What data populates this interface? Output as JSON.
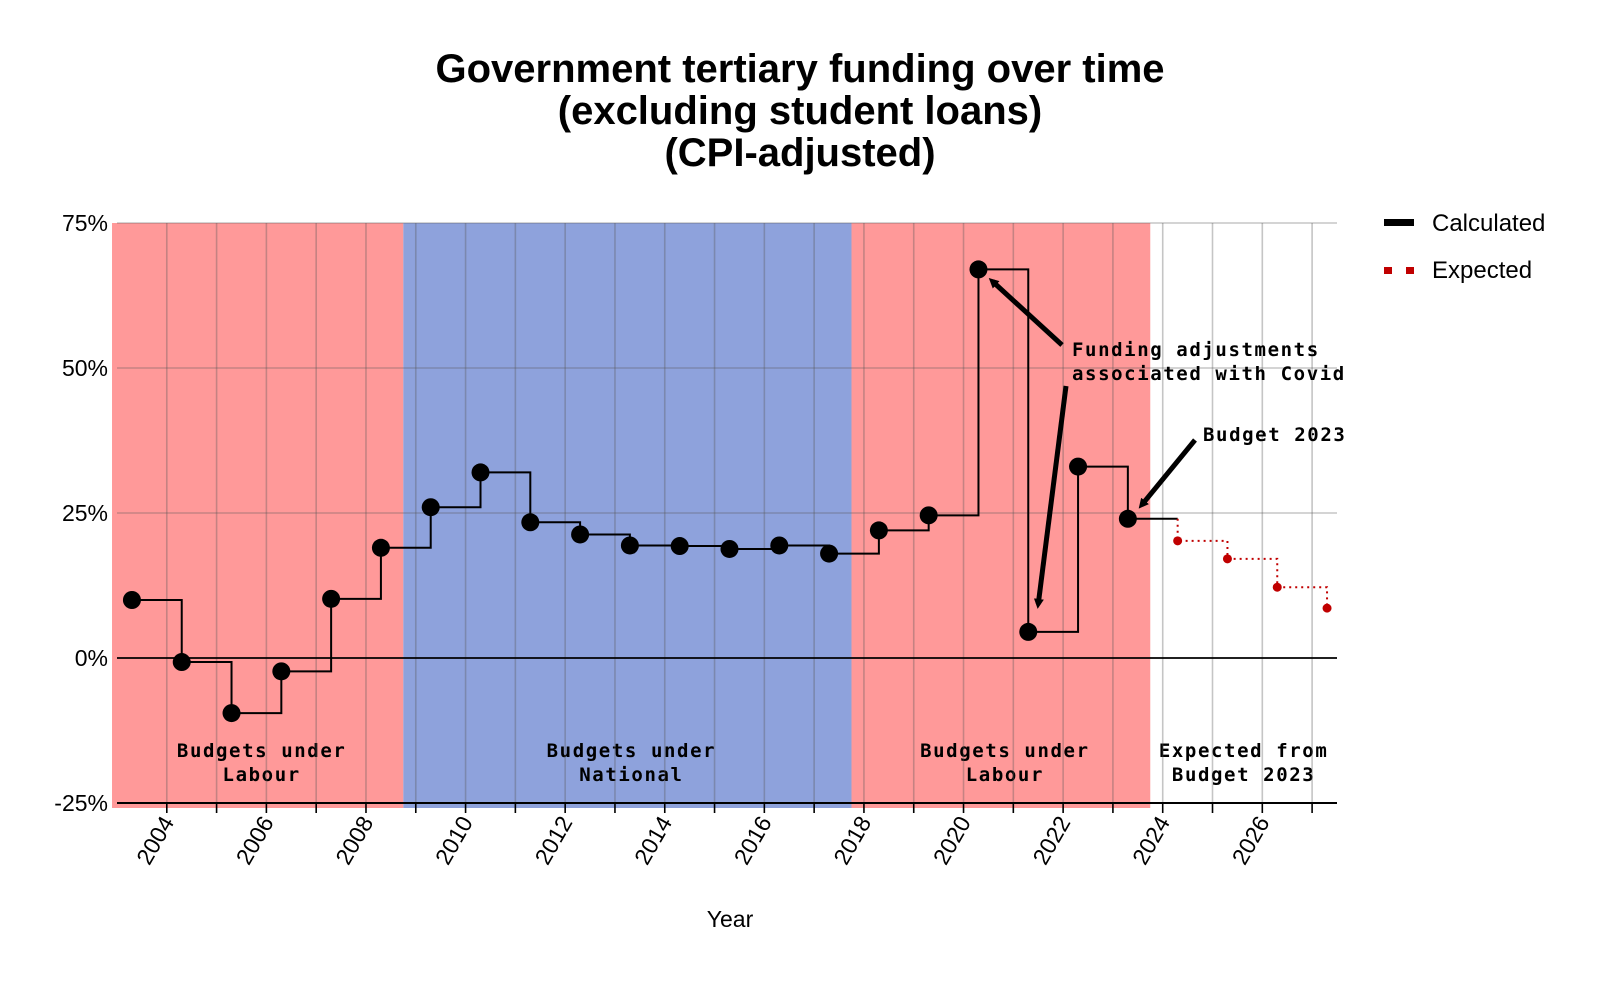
{
  "chart_data": {
    "type": "line",
    "title_lines": [
      "Government tertiary funding over time",
      "(excluding student loans)",
      "(CPI-adjusted)"
    ],
    "xlabel": "Year",
    "ylabel": "",
    "xlim": [
      2003,
      2027.5
    ],
    "ylim": [
      -25,
      75
    ],
    "y_ticks": [
      -25,
      0,
      25,
      50,
      75
    ],
    "y_tick_labels": [
      "-25%",
      "0%",
      "25%",
      "50%",
      "75%"
    ],
    "x_ticks": [
      2004,
      2006,
      2008,
      2010,
      2012,
      2014,
      2016,
      2018,
      2020,
      2022,
      2024,
      2026
    ],
    "x_tick_labels": [
      "2004",
      "2006",
      "2008",
      "2010",
      "2012",
      "2014",
      "2016",
      "2018",
      "2020",
      "2022",
      "2024",
      "2026"
    ],
    "grid": true,
    "legend_position": "top-right",
    "series": [
      {
        "name": "Calculated",
        "color": "#000000",
        "style": "step",
        "x": [
          2003.3,
          2004.3,
          2005.3,
          2006.3,
          2007.3,
          2008.3,
          2009.3,
          2010.3,
          2011.3,
          2012.3,
          2013.3,
          2014.3,
          2015.3,
          2016.3,
          2017.3,
          2018.3,
          2019.3,
          2020.3,
          2021.3,
          2022.3,
          2023.3
        ],
        "values": [
          10,
          -0.7,
          -9.5,
          -2.3,
          10.2,
          19,
          26,
          32,
          23.4,
          21.3,
          19.4,
          19.3,
          18.8,
          19.4,
          18,
          22,
          24.6,
          67,
          4.5,
          33,
          24
        ],
        "step_end_x": 2024.3
      },
      {
        "name": "Expected",
        "color": "#c00000",
        "style": "dotted-step",
        "x": [
          2024.3,
          2025.3,
          2026.3,
          2027.3
        ],
        "values": [
          20.2,
          17.1,
          12.2,
          8.6
        ],
        "start_value": 24
      }
    ],
    "regions": [
      {
        "label_lines": [
          "Budgets under",
          "Labour"
        ],
        "x_start": 2002.9,
        "x_end": 2008.75,
        "color": "#ff9999"
      },
      {
        "label_lines": [
          "Budgets under",
          "National"
        ],
        "x_start": 2008.75,
        "x_end": 2017.75,
        "color": "#8ea2dc"
      },
      {
        "label_lines": [
          "Budgets under",
          "Labour"
        ],
        "x_start": 2017.75,
        "x_end": 2023.75,
        "color": "#ff9999"
      },
      {
        "label_lines": [
          "Expected from",
          "Budget 2023"
        ],
        "x_start": 2023.75,
        "x_end": 2027.5,
        "color": null
      }
    ],
    "annotations": [
      {
        "label_lines": [
          "Funding adjustments",
          "associated with Covid"
        ],
        "point_x": [
          2020.3,
          2021.3
        ],
        "point_y": [
          67,
          4.5
        ]
      },
      {
        "label_lines": [
          "Budget 2023"
        ],
        "point_x": [
          2023.3
        ],
        "point_y": [
          24
        ]
      }
    ]
  }
}
